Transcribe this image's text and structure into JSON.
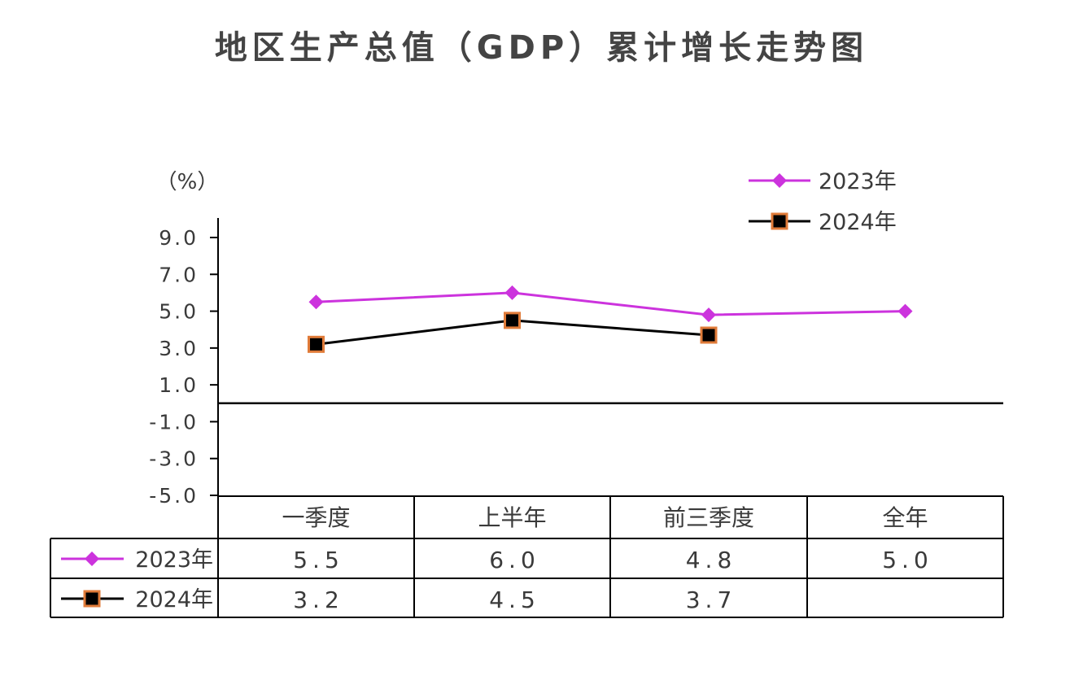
{
  "chart_data": {
    "type": "line",
    "title": "地区生产总值（GDP）累计增长走势图",
    "unit_label": "（%）",
    "categories": [
      "一季度",
      "上半年",
      "前三季度",
      "全年"
    ],
    "yticks": [
      "9.0",
      "7.0",
      "5.0",
      "3.0",
      "1.0",
      "-1.0",
      "-3.0",
      "-5.0"
    ],
    "ylim": [
      -5,
      10
    ],
    "grid": false,
    "legend_position": "top-right",
    "series": [
      {
        "name": "2023年",
        "values": [
          5.5,
          6.0,
          4.8,
          5.0
        ],
        "value_labels": [
          "5.5",
          "6.0",
          "4.8",
          "5.0"
        ],
        "color": "#cc33dd",
        "marker": "diamond"
      },
      {
        "name": "2024年",
        "values": [
          3.2,
          4.5,
          3.7,
          null
        ],
        "value_labels": [
          "3.2",
          "4.5",
          "3.7",
          ""
        ],
        "color": "#000000",
        "marker": "square",
        "marker_edge": "#e07b39"
      }
    ]
  }
}
